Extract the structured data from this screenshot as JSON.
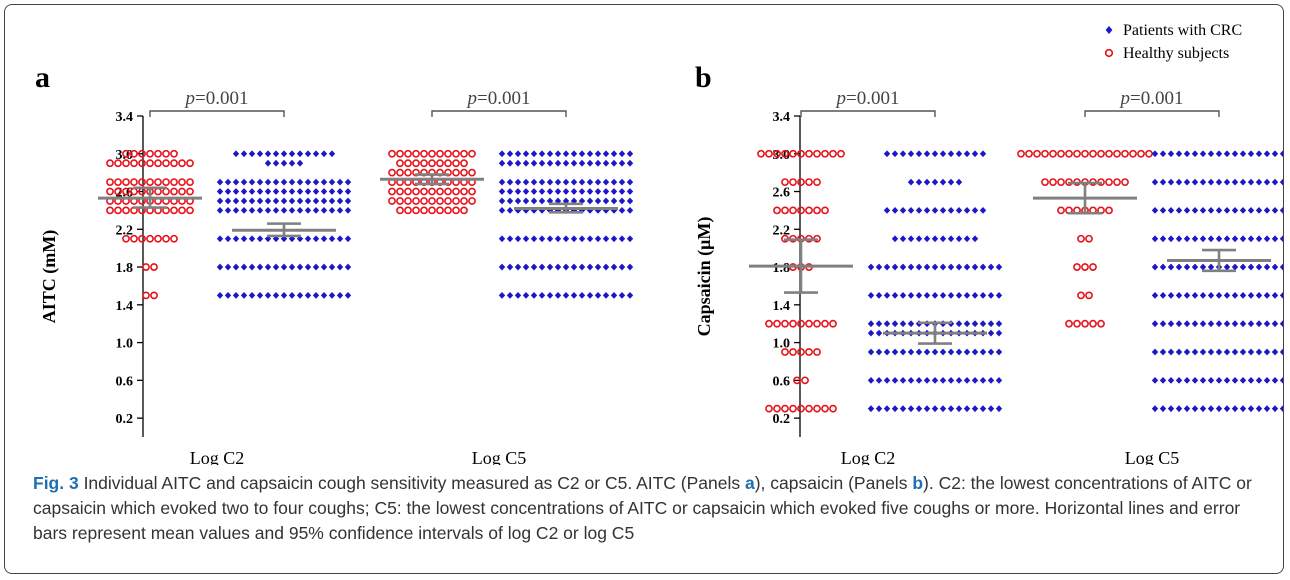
{
  "chart_data": [
    {
      "type": "scatter",
      "panel": "a",
      "ylabel": "AITC (mM)",
      "yticks": [
        "0.2",
        "0.6",
        "1.0",
        "1.4",
        "1.8",
        "2.2",
        "2.6",
        "3.0",
        "3.4"
      ],
      "ylim": [
        0.0,
        3.4
      ],
      "categories": [
        "Log C2",
        "Log C5"
      ],
      "series": [
        {
          "name": "Healthy subjects",
          "marker": "open-circle",
          "color": "#e8111a",
          "groups": [
            {
              "category": "Log C2",
              "mean": 2.53,
              "ci": [
                2.43,
                2.64
              ],
              "rows": [
                [
                  3.0,
                  7
                ],
                [
                  2.9,
                  11
                ],
                [
                  2.7,
                  11
                ],
                [
                  2.6,
                  11
                ],
                [
                  2.5,
                  11
                ],
                [
                  2.4,
                  11
                ],
                [
                  2.1,
                  7
                ],
                [
                  1.8,
                  2
                ],
                [
                  1.5,
                  2
                ]
              ]
            },
            {
              "category": "Log C5",
              "mean": 2.73,
              "ci": [
                2.68,
                2.78
              ],
              "rows": [
                [
                  3.0,
                  11
                ],
                [
                  2.9,
                  9
                ],
                [
                  2.8,
                  11
                ],
                [
                  2.7,
                  11
                ],
                [
                  2.6,
                  11
                ],
                [
                  2.5,
                  11
                ],
                [
                  2.4,
                  9
                ]
              ]
            }
          ]
        },
        {
          "name": "Patients with CRC",
          "marker": "filled-diamond",
          "color": "#1c17c8",
          "groups": [
            {
              "category": "Log C2",
              "mean": 2.19,
              "ci": [
                2.13,
                2.26
              ],
              "rows": [
                [
                  3.0,
                  13
                ],
                [
                  2.9,
                  5
                ],
                [
                  2.7,
                  17
                ],
                [
                  2.6,
                  17
                ],
                [
                  2.5,
                  17
                ],
                [
                  2.4,
                  17
                ],
                [
                  2.1,
                  17
                ],
                [
                  1.8,
                  17
                ],
                [
                  1.5,
                  17
                ]
              ]
            },
            {
              "category": "Log C5",
              "mean": 2.42,
              "ci": [
                2.38,
                2.47
              ],
              "rows": [
                [
                  3.0,
                  17
                ],
                [
                  2.9,
                  17
                ],
                [
                  2.7,
                  17
                ],
                [
                  2.6,
                  17
                ],
                [
                  2.5,
                  17
                ],
                [
                  2.4,
                  17
                ],
                [
                  2.1,
                  17
                ],
                [
                  1.8,
                  17
                ],
                [
                  1.5,
                  17
                ]
              ]
            }
          ]
        }
      ],
      "annotations": [
        {
          "between": [
            "Log C2"
          ],
          "p": "=0.001"
        },
        {
          "between": [
            "Log C5"
          ],
          "p": "=0.001"
        }
      ]
    },
    {
      "type": "scatter",
      "panel": "b",
      "ylabel": "Capsaicin (μM)",
      "yticks": [
        "0.2",
        "0.6",
        "1.0",
        "1.4",
        "1.8",
        "2.2",
        "2.6",
        "3.0",
        "3.4"
      ],
      "ylim": [
        0.0,
        3.4
      ],
      "categories": [
        "Log C2",
        "Log C5"
      ],
      "series": [
        {
          "name": "Healthy subjects",
          "marker": "open-circle",
          "color": "#e8111a",
          "groups": [
            {
              "category": "Log C2",
              "mean": 1.81,
              "ci": [
                1.53,
                2.09
              ],
              "rows": [
                [
                  3.0,
                  11
                ],
                [
                  2.7,
                  5
                ],
                [
                  2.4,
                  7
                ],
                [
                  2.1,
                  5
                ],
                [
                  1.8,
                  3
                ],
                [
                  1.2,
                  9
                ],
                [
                  0.9,
                  5
                ],
                [
                  0.6,
                  2
                ],
                [
                  0.3,
                  9
                ]
              ]
            },
            {
              "category": "Log C5",
              "mean": 2.53,
              "ci": [
                2.37,
                2.69
              ],
              "rows": [
                [
                  3.0,
                  17
                ],
                [
                  2.7,
                  11
                ],
                [
                  2.4,
                  7
                ],
                [
                  2.1,
                  2
                ],
                [
                  1.8,
                  3
                ],
                [
                  1.5,
                  2
                ],
                [
                  1.2,
                  5
                ]
              ]
            }
          ]
        },
        {
          "name": "Patients with CRC",
          "marker": "filled-diamond",
          "color": "#1c17c8",
          "groups": [
            {
              "category": "Log C2",
              "mean": 1.1,
              "ci": [
                0.99,
                1.21
              ],
              "rows": [
                [
                  3.0,
                  13
                ],
                [
                  2.7,
                  7
                ],
                [
                  2.4,
                  13
                ],
                [
                  2.1,
                  11
                ],
                [
                  1.8,
                  17
                ],
                [
                  1.5,
                  17
                ],
                [
                  1.2,
                  17
                ],
                [
                  1.1,
                  17
                ],
                [
                  0.9,
                  17
                ],
                [
                  0.6,
                  17
                ],
                [
                  0.3,
                  17
                ]
              ]
            },
            {
              "category": "Log C5",
              "mean": 1.87,
              "ci": [
                1.76,
                1.98
              ],
              "rows": [
                [
                  3.0,
                  17
                ],
                [
                  2.7,
                  17
                ],
                [
                  2.4,
                  17
                ],
                [
                  2.1,
                  17
                ],
                [
                  1.8,
                  17
                ],
                [
                  1.5,
                  17
                ],
                [
                  1.2,
                  17
                ],
                [
                  0.9,
                  17
                ],
                [
                  0.6,
                  17
                ],
                [
                  0.3,
                  17
                ]
              ]
            }
          ]
        }
      ],
      "annotations": [
        {
          "between": [
            "Log C2"
          ],
          "p": "=0.001"
        },
        {
          "between": [
            "Log C5"
          ],
          "p": "=0.001"
        }
      ]
    }
  ],
  "legend": {
    "position": "top-right",
    "items": [
      {
        "label": "Patients with CRC",
        "marker": "filled-diamond",
        "color": "#1c17c8"
      },
      {
        "label": "Healthy subjects",
        "marker": "open-circle",
        "color": "#e8111a"
      }
    ]
  },
  "caption": {
    "fig_label": "Fig. 3",
    "intro": " Individual AITC and capsaicin cough sensitivity measured as C2 or C5. AITC (Panels ",
    "a_bold": "a",
    "mid": "), capsaicin (Panels ",
    "b_bold": "b",
    "rest": "). C2: the lowest concentrations of AITC or capsaicin which evoked two to four coughs; C5: the lowest concentrations of AITC or capsaicin which evoked five coughs or more. Horizontal lines and error bars represent mean values and 95% confidence intervals of log C2 or log C5"
  }
}
